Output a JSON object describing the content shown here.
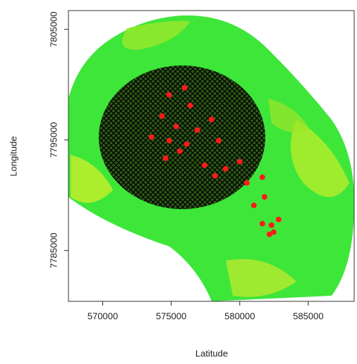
{
  "chart_data": {
    "type": "scatter",
    "x_label": "Latitude",
    "y_label": "Longitude",
    "xlim": [
      567500,
      588350
    ],
    "ylim": [
      7780400,
      7806700
    ],
    "xticks": [
      570000,
      575000,
      580000,
      585000
    ],
    "yticks": [
      7785000,
      7795000,
      7805000
    ],
    "series": [
      {
        "color": "#ff1a1a",
        "x": [
          575980,
          574846,
          576392,
          574330,
          575361,
          573557,
          574846,
          576134,
          576908,
          577939,
          578454,
          575619,
          574588,
          577424,
          578970,
          578196,
          580000,
          580516,
          581650,
          581805,
          581032,
          581650,
          582320,
          582836,
          582166,
          582475
        ],
        "y": [
          7799714,
          7799077,
          7798121,
          7797166,
          7796211,
          7795255,
          7794937,
          7794619,
          7795892,
          7796848,
          7794937,
          7793982,
          7793345,
          7792708,
          7792389,
          7791752,
          7793026,
          7791115,
          7791625,
          7789842,
          7789078,
          7787422,
          7787295,
          7787805,
          7786467,
          7786658
        ]
      }
    ]
  }
}
